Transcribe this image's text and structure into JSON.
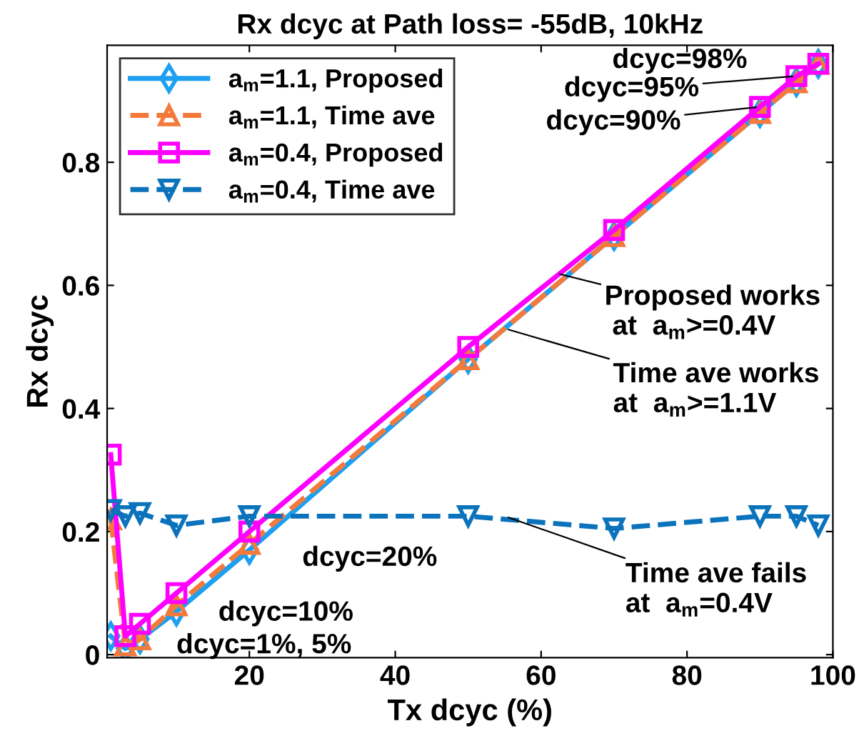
{
  "chart_data": {
    "type": "line",
    "title": "Rx dcyc at Path loss= -55dB, 10kHz",
    "xlabel": "Tx dcyc (%)",
    "ylabel": "Rx dcyc",
    "x": [
      1,
      3,
      5,
      10,
      20,
      50,
      70,
      90,
      95,
      98
    ],
    "series": [
      {
        "name": "a$_{m}$=1.1, Proposed",
        "color": "#1e9ff0",
        "marker": "diamond",
        "line_style": "solid",
        "values": [
          0.03,
          0.01,
          0.025,
          0.07,
          0.17,
          0.48,
          0.68,
          0.88,
          0.93,
          0.96
        ]
      },
      {
        "name": "a$_{m}$=1.1, Time ave",
        "color": "#f47a3c",
        "marker": "triangle",
        "line_style": "dashed",
        "values": [
          0.22,
          0.015,
          0.025,
          0.08,
          0.18,
          0.48,
          0.68,
          0.88,
          0.93,
          0.96
        ]
      },
      {
        "name": "a$_{m}$=0.4, Proposed",
        "color": "#ff00ff",
        "marker": "square",
        "line_style": "solid",
        "values": [
          0.325,
          0.03,
          0.05,
          0.1,
          0.2,
          0.5,
          0.69,
          0.89,
          0.94,
          0.96
        ]
      },
      {
        "name": "a$_{m}$=0.4, Time ave",
        "color": "#0b72bc",
        "marker": "triangle-down",
        "line_style": "dashed",
        "values": [
          0.235,
          0.225,
          0.23,
          0.21,
          0.225,
          0.225,
          0.205,
          0.225,
          0.225,
          0.21
        ]
      }
    ],
    "xlim": [
      0.5,
      100
    ],
    "ylim": [
      -0.005,
      0.99
    ],
    "xticks": [
      20,
      40,
      60,
      80,
      100
    ],
    "yticks": [
      0,
      0.2,
      0.4,
      0.6,
      0.8
    ],
    "legend": "top left",
    "grid": false,
    "annotations": [
      {
        "text": "dcyc=98%",
        "x": 98,
        "y": 0.96
      },
      {
        "text": "dcyc=95%",
        "x": 95,
        "y": 0.94
      },
      {
        "text": "dcyc=90%",
        "x": 90,
        "y": 0.89
      },
      {
        "text": "Proposed works\n at  a$_{m}$>=0.4V",
        "x": 62,
        "y": 0.62
      },
      {
        "text": "Time ave works\nat  a$_{m}$>=1.1V",
        "x": 55,
        "y": 0.53
      },
      {
        "text": "Time ave fails\nat  a$_{m}$=0.4V",
        "x": 55,
        "y": 0.225
      },
      {
        "text": "dcyc=20%",
        "x": 20,
        "y": 0.2
      },
      {
        "text": "dcyc=10%",
        "x": 10,
        "y": 0.1
      },
      {
        "text": "dcyc=1%, 5%",
        "x": 3,
        "y": 0.03
      }
    ]
  }
}
